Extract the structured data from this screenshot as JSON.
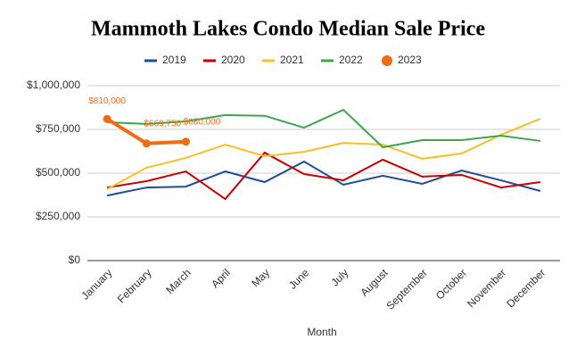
{
  "chart_data": {
    "type": "line",
    "title": "Mammoth Lakes Condo Median Sale Price",
    "xlabel": "Month",
    "categories": [
      "January",
      "February",
      "March",
      "April",
      "May",
      "June",
      "July",
      "August",
      "September",
      "October",
      "November",
      "December"
    ],
    "series": [
      {
        "name": "2019",
        "color": "#1f4e96",
        "values": [
          372000,
          418000,
          423000,
          510000,
          449000,
          566000,
          434000,
          485000,
          439000,
          515000,
          459000,
          398000
        ]
      },
      {
        "name": "2020",
        "color": "#cc0000",
        "values": [
          418000,
          454000,
          510000,
          352000,
          617000,
          495000,
          459000,
          577000,
          480000,
          490000,
          418000,
          449000
        ]
      },
      {
        "name": "2021",
        "color": "#f6c026",
        "values": [
          408000,
          531000,
          587000,
          663000,
          597000,
          622000,
          673000,
          663000,
          582000,
          612000,
          719000,
          811000
        ]
      },
      {
        "name": "2022",
        "color": "#3ea64a",
        "values": [
          791000,
          781000,
          796000,
          832000,
          828000,
          760000,
          862000,
          648000,
          689000,
          689000,
          714000,
          684000
        ]
      },
      {
        "name": "2023",
        "color": "#f26b0f",
        "values": [
          810000,
          669750,
          680000,
          null,
          null,
          null,
          null,
          null,
          null,
          null,
          null,
          null
        ],
        "value_labels": [
          "$810,000",
          "$669,750",
          "$680,000",
          null,
          null,
          null,
          null,
          null,
          null,
          null,
          null,
          null
        ]
      }
    ],
    "ylim": [
      0,
      1000000
    ],
    "yticks": [
      {
        "value": 0,
        "label": "$0"
      },
      {
        "value": 250000,
        "label": "$250,000"
      },
      {
        "value": 500000,
        "label": "$500,000"
      },
      {
        "value": 750000,
        "label": "$750,000"
      },
      {
        "value": 1000000,
        "label": "$1,000,000"
      }
    ],
    "grid": true,
    "legend": "top"
  }
}
